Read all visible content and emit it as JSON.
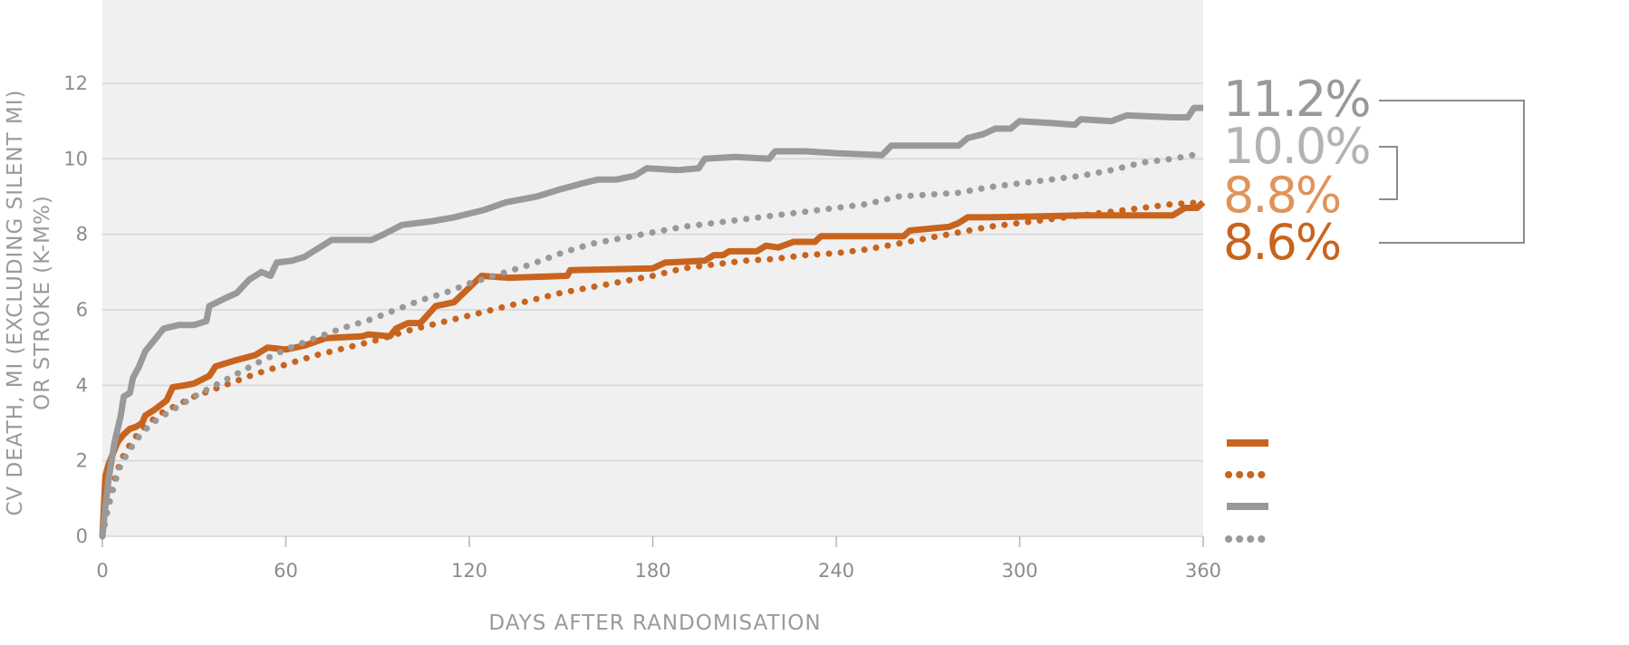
{
  "chart_data": {
    "type": "line",
    "title": "",
    "xlabel": "DAYS AFTER RANDOMISATION",
    "ylabel_line1": "CV DEATH, MI (EXCLUDING SILENT MI)",
    "ylabel_line2": "OR STROKE (K-M%)",
    "xlim": [
      0,
      360
    ],
    "ylim": [
      0,
      12
    ],
    "x_ticks": [
      "0",
      "60",
      "120",
      "180",
      "240",
      "300",
      "360"
    ],
    "y_ticks": [
      "0",
      "2",
      "4",
      "6",
      "8",
      "10",
      "12"
    ],
    "grid": true,
    "series": [
      {
        "style": "solid",
        "color": "#c8641e",
        "end_label": "8.6%",
        "points": [
          [
            0,
            0
          ],
          [
            1,
            1.6
          ],
          [
            2,
            1.9
          ],
          [
            3,
            2.1
          ],
          [
            4,
            2.3
          ],
          [
            5,
            2.5
          ],
          [
            7,
            2.7
          ],
          [
            9,
            2.85
          ],
          [
            11,
            2.9
          ],
          [
            13,
            3.0
          ],
          [
            14,
            3.2
          ],
          [
            17,
            3.35
          ],
          [
            21,
            3.6
          ],
          [
            23,
            3.95
          ],
          [
            27,
            4.0
          ],
          [
            30,
            4.05
          ],
          [
            35,
            4.25
          ],
          [
            37,
            4.5
          ],
          [
            43,
            4.65
          ],
          [
            50,
            4.8
          ],
          [
            54,
            5.0
          ],
          [
            60,
            4.95
          ],
          [
            66,
            5.05
          ],
          [
            73,
            5.25
          ],
          [
            85,
            5.3
          ],
          [
            87,
            5.35
          ],
          [
            94,
            5.3
          ],
          [
            96,
            5.5
          ],
          [
            100,
            5.65
          ],
          [
            104,
            5.65
          ],
          [
            109,
            6.1
          ],
          [
            115,
            6.2
          ],
          [
            124,
            6.9
          ],
          [
            133,
            6.85
          ],
          [
            152,
            6.9
          ],
          [
            153,
            7.05
          ],
          [
            180,
            7.1
          ],
          [
            184,
            7.25
          ],
          [
            197,
            7.3
          ],
          [
            200,
            7.45
          ],
          [
            203,
            7.45
          ],
          [
            205,
            7.55
          ],
          [
            214,
            7.55
          ],
          [
            217,
            7.7
          ],
          [
            221,
            7.65
          ],
          [
            226,
            7.8
          ],
          [
            233,
            7.8
          ],
          [
            235,
            7.95
          ],
          [
            242,
            7.95
          ],
          [
            262,
            7.95
          ],
          [
            264,
            8.1
          ],
          [
            277,
            8.2
          ],
          [
            280,
            8.3
          ],
          [
            283,
            8.45
          ],
          [
            290,
            8.45
          ],
          [
            320,
            8.5
          ],
          [
            350,
            8.5
          ],
          [
            354,
            8.7
          ],
          [
            358,
            8.7
          ],
          [
            360,
            8.85
          ]
        ]
      },
      {
        "style": "dotted",
        "color": "#c8641e",
        "end_label": "8.8%",
        "points": [
          [
            0,
            0
          ],
          [
            1,
            0.5
          ],
          [
            2,
            0.9
          ],
          [
            4,
            1.5
          ],
          [
            6,
            2.0
          ],
          [
            8,
            2.3
          ],
          [
            10,
            2.55
          ],
          [
            12,
            2.75
          ],
          [
            15,
            3.0
          ],
          [
            20,
            3.3
          ],
          [
            25,
            3.5
          ],
          [
            30,
            3.7
          ],
          [
            35,
            3.85
          ],
          [
            40,
            4.0
          ],
          [
            45,
            4.15
          ],
          [
            50,
            4.3
          ],
          [
            60,
            4.55
          ],
          [
            70,
            4.8
          ],
          [
            80,
            5.0
          ],
          [
            90,
            5.2
          ],
          [
            100,
            5.45
          ],
          [
            110,
            5.65
          ],
          [
            120,
            5.85
          ],
          [
            130,
            6.05
          ],
          [
            140,
            6.25
          ],
          [
            150,
            6.45
          ],
          [
            160,
            6.6
          ],
          [
            170,
            6.75
          ],
          [
            180,
            6.9
          ],
          [
            190,
            7.1
          ],
          [
            200,
            7.2
          ],
          [
            210,
            7.3
          ],
          [
            220,
            7.35
          ],
          [
            230,
            7.45
          ],
          [
            240,
            7.5
          ],
          [
            250,
            7.6
          ],
          [
            260,
            7.75
          ],
          [
            270,
            7.9
          ],
          [
            280,
            8.05
          ],
          [
            290,
            8.2
          ],
          [
            300,
            8.3
          ],
          [
            310,
            8.4
          ],
          [
            320,
            8.5
          ],
          [
            330,
            8.6
          ],
          [
            340,
            8.7
          ],
          [
            350,
            8.8
          ],
          [
            360,
            8.85
          ]
        ]
      },
      {
        "style": "solid",
        "color": "#999999",
        "end_label": "11.2%",
        "points": [
          [
            0,
            0
          ],
          [
            1,
            0.8
          ],
          [
            2,
            1.5
          ],
          [
            4,
            2.5
          ],
          [
            6,
            3.2
          ],
          [
            7,
            3.7
          ],
          [
            9,
            3.8
          ],
          [
            10,
            4.2
          ],
          [
            12,
            4.5
          ],
          [
            14,
            4.9
          ],
          [
            18,
            5.3
          ],
          [
            20,
            5.5
          ],
          [
            25,
            5.6
          ],
          [
            30,
            5.6
          ],
          [
            34,
            5.7
          ],
          [
            35,
            6.1
          ],
          [
            40,
            6.3
          ],
          [
            44,
            6.45
          ],
          [
            48,
            6.8
          ],
          [
            52,
            7.0
          ],
          [
            55,
            6.9
          ],
          [
            57,
            7.25
          ],
          [
            62,
            7.3
          ],
          [
            66,
            7.4
          ],
          [
            70,
            7.6
          ],
          [
            75,
            7.85
          ],
          [
            88,
            7.85
          ],
          [
            92,
            8.0
          ],
          [
            98,
            8.25
          ],
          [
            108,
            8.35
          ],
          [
            115,
            8.45
          ],
          [
            125,
            8.65
          ],
          [
            132,
            8.85
          ],
          [
            142,
            9.0
          ],
          [
            150,
            9.2
          ],
          [
            157,
            9.35
          ],
          [
            162,
            9.45
          ],
          [
            168,
            9.45
          ],
          [
            174,
            9.55
          ],
          [
            178,
            9.75
          ],
          [
            188,
            9.7
          ],
          [
            195,
            9.75
          ],
          [
            197,
            10.0
          ],
          [
            207,
            10.05
          ],
          [
            218,
            10.0
          ],
          [
            220,
            10.2
          ],
          [
            230,
            10.2
          ],
          [
            240,
            10.15
          ],
          [
            255,
            10.1
          ],
          [
            258,
            10.35
          ],
          [
            280,
            10.35
          ],
          [
            283,
            10.55
          ],
          [
            288,
            10.65
          ],
          [
            292,
            10.8
          ],
          [
            297,
            10.8
          ],
          [
            300,
            11.0
          ],
          [
            310,
            10.95
          ],
          [
            318,
            10.9
          ],
          [
            320,
            11.05
          ],
          [
            330,
            11.0
          ],
          [
            335,
            11.15
          ],
          [
            350,
            11.1
          ],
          [
            355,
            11.1
          ],
          [
            357,
            11.35
          ],
          [
            360,
            11.35
          ]
        ]
      },
      {
        "style": "dotted",
        "color": "#999999",
        "end_label": "10.0%",
        "points": [
          [
            0,
            0
          ],
          [
            1,
            0.4
          ],
          [
            2,
            0.8
          ],
          [
            4,
            1.4
          ],
          [
            6,
            1.9
          ],
          [
            9,
            2.3
          ],
          [
            13,
            2.75
          ],
          [
            18,
            3.1
          ],
          [
            24,
            3.4
          ],
          [
            30,
            3.7
          ],
          [
            38,
            4.05
          ],
          [
            45,
            4.35
          ],
          [
            52,
            4.65
          ],
          [
            60,
            4.95
          ],
          [
            68,
            5.2
          ],
          [
            78,
            5.5
          ],
          [
            88,
            5.75
          ],
          [
            96,
            6.0
          ],
          [
            104,
            6.25
          ],
          [
            112,
            6.45
          ],
          [
            120,
            6.7
          ],
          [
            130,
            6.95
          ],
          [
            140,
            7.2
          ],
          [
            150,
            7.5
          ],
          [
            160,
            7.75
          ],
          [
            170,
            7.9
          ],
          [
            180,
            8.05
          ],
          [
            190,
            8.2
          ],
          [
            200,
            8.3
          ],
          [
            210,
            8.4
          ],
          [
            220,
            8.5
          ],
          [
            230,
            8.6
          ],
          [
            240,
            8.7
          ],
          [
            250,
            8.8
          ],
          [
            260,
            9.0
          ],
          [
            270,
            9.05
          ],
          [
            280,
            9.1
          ],
          [
            290,
            9.25
          ],
          [
            300,
            9.35
          ],
          [
            310,
            9.45
          ],
          [
            320,
            9.55
          ],
          [
            330,
            9.7
          ],
          [
            340,
            9.9
          ],
          [
            350,
            10.0
          ],
          [
            360,
            10.15
          ]
        ]
      }
    ]
  },
  "end_labels": {
    "a": {
      "text": "11.2%",
      "color": "#999999"
    },
    "b": {
      "text": "10.0%",
      "color": "#b3b3b3"
    },
    "c": {
      "text": "8.8%",
      "color": "#e0945a"
    },
    "d": {
      "text": "8.6%",
      "color": "#c8641e"
    }
  },
  "colors": {
    "plot_bg": "#f0f0f0",
    "grid": "#d6d6d6",
    "orange": "#c8641e",
    "grey": "#999999",
    "bracket": "#8c8c8c"
  }
}
